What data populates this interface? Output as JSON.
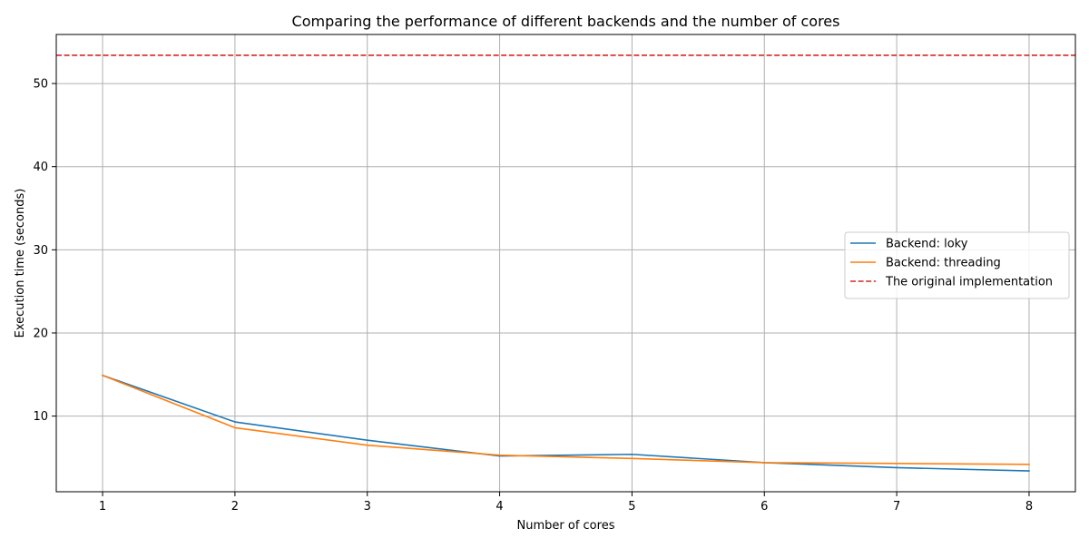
{
  "chart_data": {
    "type": "line",
    "title": "Comparing the performance of different backends and the number of cores",
    "xlabel": "Number of cores",
    "ylabel": "Execution time (seconds)",
    "x": [
      1,
      2,
      3,
      4,
      5,
      6,
      7,
      8
    ],
    "xlim": [
      0.65,
      8.35
    ],
    "ylim": [
      0.9,
      55.9
    ],
    "xticks": [
      1,
      2,
      3,
      4,
      5,
      6,
      7,
      8
    ],
    "yticks": [
      10,
      20,
      30,
      40,
      50
    ],
    "grid": true,
    "legend_position": "center-right",
    "series": [
      {
        "name": "Backend: loky",
        "color": "#1f77b4",
        "style": "solid",
        "values": [
          14.9,
          9.3,
          7.1,
          5.2,
          5.4,
          4.4,
          3.8,
          3.4
        ]
      },
      {
        "name": "Backend: threading",
        "color": "#ff7f0e",
        "style": "solid",
        "values": [
          14.9,
          8.6,
          6.5,
          5.3,
          4.9,
          4.4,
          4.3,
          4.2
        ]
      }
    ],
    "reference_lines": [
      {
        "name": "The original implementation",
        "color": "#d62728",
        "style": "dashed",
        "y": 53.4
      }
    ]
  }
}
